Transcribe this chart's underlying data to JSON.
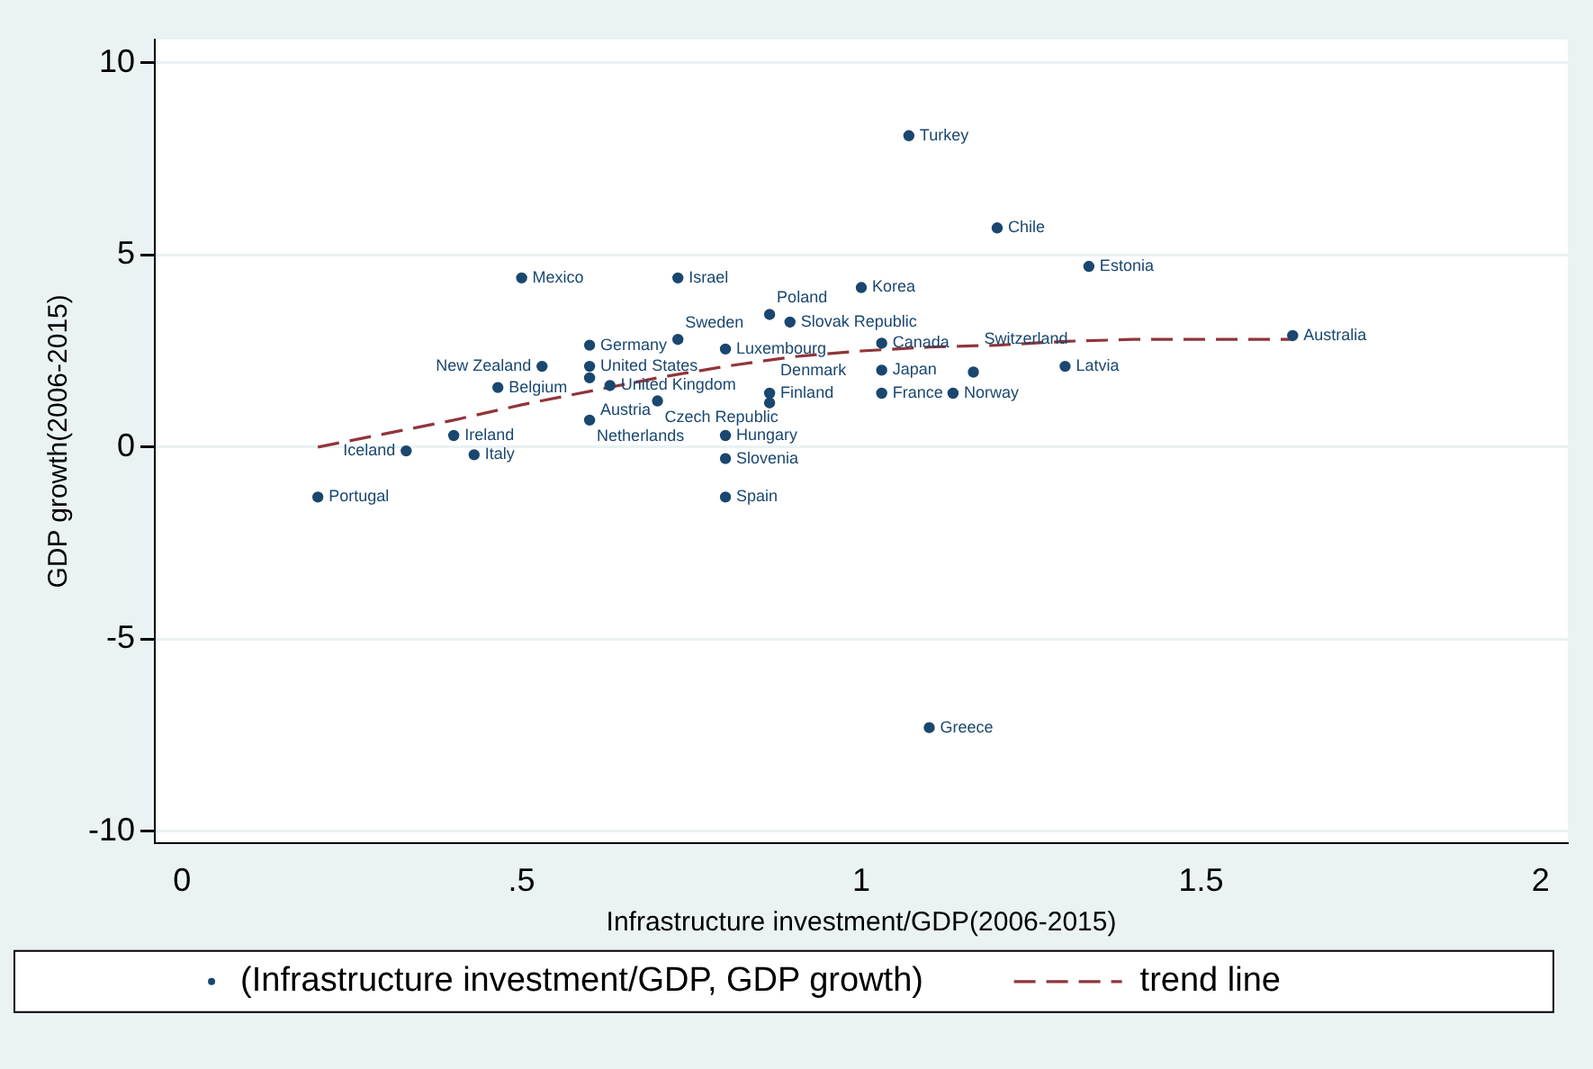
{
  "chart_data": {
    "type": "scatter",
    "xlabel": "Infrastructure investment/GDP(2006-2015)",
    "ylabel": "GDP growth(2006-2015)",
    "xlim": [
      -0.04,
      2.04
    ],
    "ylim": [
      -10.3,
      10.6
    ],
    "xticks": [
      0,
      {
        "value": 0.5,
        "label": ".5"
      },
      1,
      1.5,
      2
    ],
    "yticks": [
      -10,
      -5,
      0,
      5,
      10
    ],
    "grid": "y",
    "legend": "bottom",
    "series": [
      {
        "name": "(Infrastructure investment/GDP, GDP growth)",
        "type": "scatter",
        "marker": "circle",
        "color": "#1a476f",
        "x": [
          0.2,
          0.33,
          0.4,
          0.43,
          0.465,
          0.5,
          0.53,
          0.6,
          0.6,
          0.6,
          0.6,
          0.63,
          0.73,
          0.73,
          0.7,
          0.8,
          0.8,
          0.8,
          0.8,
          0.865,
          0.895,
          0.865,
          0.865,
          1.0,
          1.03,
          1.03,
          1.03,
          1.07,
          1.135,
          1.165,
          1.1,
          1.2,
          1.3,
          1.335,
          1.635
        ],
        "values": [
          -1.3,
          -0.1,
          0.3,
          -0.2,
          1.55,
          4.4,
          2.1,
          2.65,
          2.1,
          1.8,
          0.7,
          1.6,
          4.4,
          2.8,
          1.2,
          2.55,
          0.3,
          -0.3,
          -1.3,
          3.45,
          3.25,
          1.4,
          1.15,
          4.15,
          2.7,
          2.0,
          1.4,
          8.1,
          1.4,
          1.95,
          -7.3,
          5.7,
          2.1,
          4.7,
          2.9
        ]
      },
      {
        "name": "trend line",
        "type": "line",
        "line_style": "dashed",
        "marker": "none",
        "color": "#90353b",
        "x": [
          0.2,
          0.3,
          0.4,
          0.5,
          0.6,
          0.7,
          0.8,
          0.9,
          1.0,
          1.1,
          1.2,
          1.3,
          1.4,
          1.635
        ],
        "values": [
          0,
          0.35,
          0.7,
          1.1,
          1.45,
          1.8,
          2.1,
          2.35,
          2.5,
          2.6,
          2.65,
          2.75,
          2.8,
          2.8
        ]
      }
    ],
    "annotations": [
      {
        "text": "Portugal",
        "x": 0.2,
        "y": -1.3
      },
      {
        "text": "Iceland",
        "x": 0.33,
        "y": -0.1
      },
      {
        "text": "Ireland",
        "x": 0.4,
        "y": 0.3
      },
      {
        "text": "Italy",
        "x": 0.43,
        "y": -0.2
      },
      {
        "text": "Belgium",
        "x": 0.465,
        "y": 1.55
      },
      {
        "text": "Mexico",
        "x": 0.5,
        "y": 4.4
      },
      {
        "text": "New Zealand",
        "x": 0.53,
        "y": 2.1
      },
      {
        "text": "Germany",
        "x": 0.6,
        "y": 2.65
      },
      {
        "text": "United States",
        "x": 0.6,
        "y": 2.1
      },
      {
        "text": "Austria",
        "x": 0.6,
        "y": 1.8
      },
      {
        "text": "Netherlands",
        "x": 0.6,
        "y": 0.7
      },
      {
        "text": "United Kingdom",
        "x": 0.63,
        "y": 1.6
      },
      {
        "text": "Israel",
        "x": 0.73,
        "y": 4.4
      },
      {
        "text": "Sweden",
        "x": 0.73,
        "y": 2.8
      },
      {
        "text": "Czech Republic",
        "x": 0.7,
        "y": 1.2
      },
      {
        "text": "Luxembourg",
        "x": 0.8,
        "y": 2.55
      },
      {
        "text": "Hungary",
        "x": 0.8,
        "y": 0.3
      },
      {
        "text": "Slovenia",
        "x": 0.8,
        "y": -0.3
      },
      {
        "text": "Spain",
        "x": 0.8,
        "y": -1.3
      },
      {
        "text": "Poland",
        "x": 0.865,
        "y": 3.45
      },
      {
        "text": "Slovak Republic",
        "x": 0.895,
        "y": 3.25
      },
      {
        "text": "Finland",
        "x": 0.865,
        "y": 1.4
      },
      {
        "text": "Denmark",
        "x": 0.865,
        "y": 1.15
      },
      {
        "text": "Korea",
        "x": 1.0,
        "y": 4.15
      },
      {
        "text": "Canada",
        "x": 1.03,
        "y": 2.7
      },
      {
        "text": "Japan",
        "x": 1.03,
        "y": 2.0
      },
      {
        "text": "France",
        "x": 1.03,
        "y": 1.4
      },
      {
        "text": "Turkey",
        "x": 1.07,
        "y": 8.1
      },
      {
        "text": "Norway",
        "x": 1.135,
        "y": 1.4
      },
      {
        "text": "Switzerland",
        "x": 1.165,
        "y": 1.95
      },
      {
        "text": "Greece",
        "x": 1.1,
        "y": -7.3
      },
      {
        "text": "Chile",
        "x": 1.2,
        "y": 5.7
      },
      {
        "text": "Latvia",
        "x": 1.3,
        "y": 2.1
      },
      {
        "text": "Estonia",
        "x": 1.335,
        "y": 4.7
      },
      {
        "text": "Australia",
        "x": 1.635,
        "y": 2.9
      }
    ]
  }
}
